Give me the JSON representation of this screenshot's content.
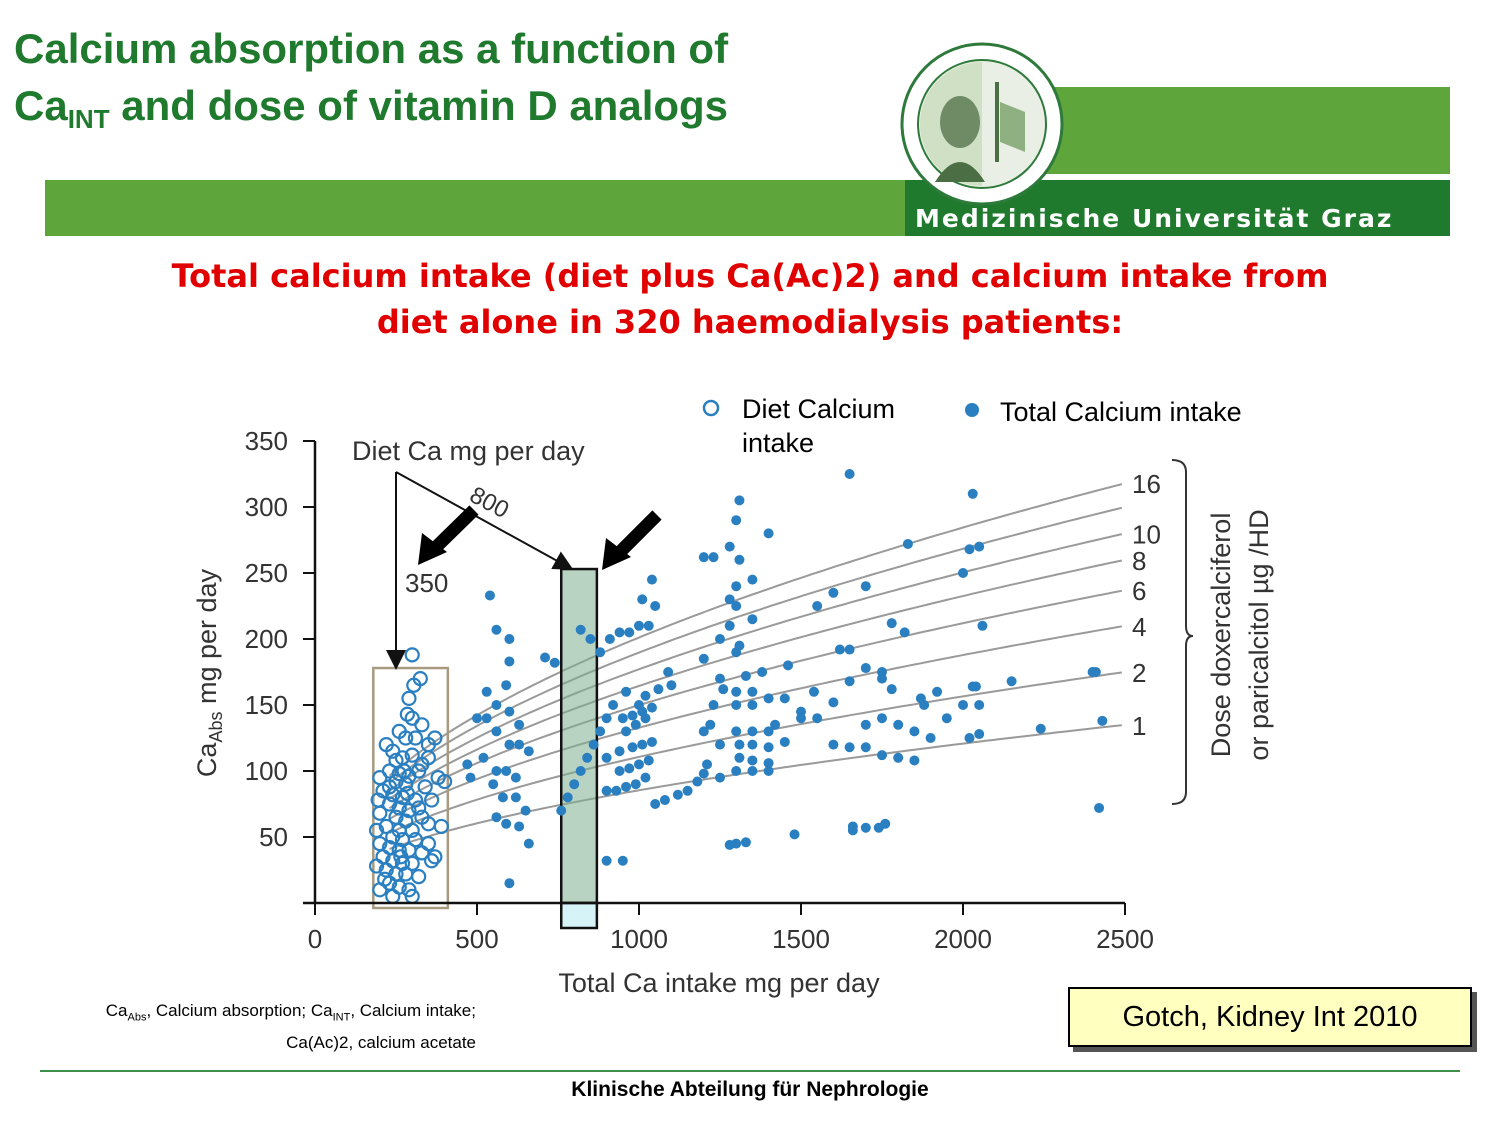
{
  "slide": {
    "title_line1": "Calcium absorption as a function of",
    "title_line2_prefix": "Ca",
    "title_line2_sub": "INT",
    "title_line2_rest": " and dose of vitamin D analogs",
    "university": "Medizinische Universität Graz",
    "subtitle_line1": "Total calcium intake (diet plus Ca(Ac)2) and calcium intake from",
    "subtitle_line2": "diet alone in 320 haemodialysis patients:",
    "footnote_l1_a": "Ca",
    "footnote_l1_a_sub": "Abs",
    "footnote_l1_b": ", Calcium absorption; Ca",
    "footnote_l1_b_sub": "INT",
    "footnote_l1_c": ", Calcium intake;",
    "footnote_l2": "Ca(Ac)2, calcium acetate",
    "citation": "Gotch, Kidney Int 2010",
    "footer": "Klinische Abteilung für Nephrologie",
    "colors": {
      "title_green": "#1f7a2e",
      "band_green": "#5ea63c",
      "subtitle_red": "#e00000",
      "point_blue": "#2a7fc1"
    }
  },
  "chart_data": {
    "type": "scatter",
    "xlabel": "Total Ca intake mg per day",
    "ylabel_prefix": "Ca",
    "ylabel_sub": "Abs",
    "ylabel_rest": " mg per day",
    "xlim": [
      0,
      2500
    ],
    "ylim": [
      0,
      350
    ],
    "xticks": [
      0,
      500,
      1000,
      1500,
      2000,
      2500
    ],
    "yticks": [
      50,
      100,
      150,
      200,
      250,
      300,
      350
    ],
    "legend": {
      "open_label_l1": "Diet Calcium",
      "open_label_l2": "intake",
      "filled_label": "Total Calcium intake"
    },
    "annotation_title": "Diet Ca mg per day",
    "annotation_350": "350",
    "annotation_800": "800",
    "dose_label_l1": "Dose doxercalciferol",
    "dose_label_l2": "or paricalcitol µg /HD",
    "curves": [
      {
        "label": "1",
        "y_end": 135
      },
      {
        "label": "2",
        "y_end": 175
      },
      {
        "label": "4",
        "y_end": 210
      },
      {
        "label": "6",
        "y_end": 237
      },
      {
        "label": "8",
        "y_end": 260
      },
      {
        "label": "10",
        "y_end": 280
      },
      {
        "label": "",
        "y_end": 300
      },
      {
        "label": "16",
        "y_end": 318
      }
    ],
    "highlight_diet_box": [
      180,
      410,
      0,
      178
    ],
    "highlight_800_column": [
      760,
      870,
      0,
      253
    ],
    "series": [
      {
        "name": "Diet Calcium intake",
        "marker": "open",
        "points": [
          [
            300,
            188
          ],
          [
            325,
            170
          ],
          [
            305,
            165
          ],
          [
            290,
            155
          ],
          [
            285,
            143
          ],
          [
            300,
            140
          ],
          [
            260,
            130
          ],
          [
            330,
            135
          ],
          [
            280,
            125
          ],
          [
            310,
            125
          ],
          [
            350,
            120
          ],
          [
            240,
            115
          ],
          [
            270,
            110
          ],
          [
            300,
            112
          ],
          [
            330,
            105
          ],
          [
            230,
            100
          ],
          [
            260,
            98
          ],
          [
            290,
            96
          ],
          [
            320,
            100
          ],
          [
            200,
            95
          ],
          [
            250,
            92
          ],
          [
            280,
            90
          ],
          [
            340,
            88
          ],
          [
            210,
            85
          ],
          [
            240,
            82
          ],
          [
            270,
            80
          ],
          [
            310,
            78
          ],
          [
            360,
            78
          ],
          [
            230,
            75
          ],
          [
            260,
            72
          ],
          [
            290,
            70
          ],
          [
            320,
            72
          ],
          [
            200,
            68
          ],
          [
            250,
            65
          ],
          [
            280,
            62
          ],
          [
            330,
            65
          ],
          [
            390,
            58
          ],
          [
            220,
            58
          ],
          [
            260,
            55
          ],
          [
            300,
            55
          ],
          [
            190,
            55
          ],
          [
            240,
            50
          ],
          [
            270,
            48
          ],
          [
            310,
            48
          ],
          [
            350,
            45
          ],
          [
            200,
            45
          ],
          [
            230,
            42
          ],
          [
            260,
            40
          ],
          [
            290,
            40
          ],
          [
            330,
            38
          ],
          [
            370,
            35
          ],
          [
            210,
            35
          ],
          [
            240,
            32
          ],
          [
            270,
            30
          ],
          [
            300,
            30
          ],
          [
            190,
            28
          ],
          [
            220,
            25
          ],
          [
            250,
            22
          ],
          [
            280,
            22
          ],
          [
            320,
            20
          ],
          [
            230,
            15
          ],
          [
            260,
            12
          ],
          [
            290,
            10
          ],
          [
            200,
            10
          ],
          [
            240,
            5
          ],
          [
            300,
            5
          ],
          [
            380,
            95
          ],
          [
            400,
            92
          ],
          [
            350,
            110
          ],
          [
            370,
            125
          ],
          [
            220,
            120
          ],
          [
            250,
            108
          ],
          [
            275,
            100
          ],
          [
            230,
            88
          ],
          [
            195,
            78
          ],
          [
            350,
            60
          ],
          [
            360,
            32
          ],
          [
            215,
            18
          ],
          [
            265,
            35
          ],
          [
            285,
            83
          ]
        ]
      },
      {
        "name": "Total Calcium intake",
        "marker": "filled",
        "points": [
          [
            540,
            233
          ],
          [
            560,
            207
          ],
          [
            600,
            200
          ],
          [
            600,
            183
          ],
          [
            590,
            165
          ],
          [
            530,
            160
          ],
          [
            560,
            150
          ],
          [
            600,
            145
          ],
          [
            630,
            135
          ],
          [
            500,
            140
          ],
          [
            530,
            140
          ],
          [
            560,
            130
          ],
          [
            600,
            120
          ],
          [
            630,
            120
          ],
          [
            660,
            115
          ],
          [
            520,
            110
          ],
          [
            560,
            100
          ],
          [
            590,
            100
          ],
          [
            620,
            95
          ],
          [
            550,
            90
          ],
          [
            580,
            80
          ],
          [
            620,
            80
          ],
          [
            650,
            70
          ],
          [
            560,
            65
          ],
          [
            590,
            60
          ],
          [
            630,
            58
          ],
          [
            660,
            45
          ],
          [
            600,
            15
          ],
          [
            470,
            105
          ],
          [
            480,
            95
          ],
          [
            710,
            186
          ],
          [
            740,
            182
          ],
          [
            820,
            207
          ],
          [
            850,
            200
          ],
          [
            880,
            190
          ],
          [
            910,
            200
          ],
          [
            940,
            205
          ],
          [
            970,
            205
          ],
          [
            1000,
            210
          ],
          [
            1030,
            210
          ],
          [
            1050,
            225
          ],
          [
            1010,
            230
          ],
          [
            1040,
            245
          ],
          [
            1090,
            175
          ],
          [
            1100,
            165
          ],
          [
            1060,
            162
          ],
          [
            1020,
            157
          ],
          [
            960,
            160
          ],
          [
            920,
            150
          ],
          [
            900,
            140
          ],
          [
            880,
            130
          ],
          [
            860,
            120
          ],
          [
            840,
            110
          ],
          [
            820,
            100
          ],
          [
            800,
            90
          ],
          [
            780,
            80
          ],
          [
            760,
            70
          ],
          [
            900,
            85
          ],
          [
            930,
            85
          ],
          [
            960,
            88
          ],
          [
            990,
            90
          ],
          [
            1020,
            95
          ],
          [
            940,
            100
          ],
          [
            970,
            102
          ],
          [
            1000,
            105
          ],
          [
            1030,
            108
          ],
          [
            900,
            110
          ],
          [
            940,
            115
          ],
          [
            980,
            118
          ],
          [
            1010,
            120
          ],
          [
            1040,
            122
          ],
          [
            950,
            140
          ],
          [
            980,
            142
          ],
          [
            1010,
            145
          ],
          [
            1040,
            148
          ],
          [
            1000,
            150
          ],
          [
            960,
            130
          ],
          [
            990,
            135
          ],
          [
            1020,
            140
          ],
          [
            950,
            32
          ],
          [
            900,
            32
          ],
          [
            1200,
            262
          ],
          [
            1230,
            262
          ],
          [
            1280,
            270
          ],
          [
            1310,
            260
          ],
          [
            1300,
            290
          ],
          [
            1310,
            305
          ],
          [
            1400,
            280
          ],
          [
            1300,
            240
          ],
          [
            1350,
            245
          ],
          [
            1280,
            230
          ],
          [
            1300,
            225
          ],
          [
            1250,
            200
          ],
          [
            1280,
            210
          ],
          [
            1350,
            215
          ],
          [
            1310,
            195
          ],
          [
            1300,
            190
          ],
          [
            1200,
            185
          ],
          [
            1250,
            170
          ],
          [
            1300,
            160
          ],
          [
            1350,
            160
          ],
          [
            1400,
            155
          ],
          [
            1300,
            150
          ],
          [
            1350,
            150
          ],
          [
            1200,
            130
          ],
          [
            1300,
            130
          ],
          [
            1350,
            130
          ],
          [
            1400,
            130
          ],
          [
            1310,
            120
          ],
          [
            1350,
            120
          ],
          [
            1400,
            118
          ],
          [
            1310,
            110
          ],
          [
            1350,
            108
          ],
          [
            1400,
            106
          ],
          [
            1200,
            98
          ],
          [
            1300,
            100
          ],
          [
            1350,
            100
          ],
          [
            1400,
            100
          ],
          [
            1250,
            95
          ],
          [
            1300,
            45
          ],
          [
            1280,
            44
          ],
          [
            1330,
            46
          ],
          [
            1480,
            52
          ],
          [
            1460,
            180
          ],
          [
            1450,
            122
          ],
          [
            1500,
            145
          ],
          [
            1550,
            140
          ],
          [
            1550,
            225
          ],
          [
            1600,
            235
          ],
          [
            1650,
            325
          ],
          [
            1700,
            240
          ],
          [
            1750,
            175
          ],
          [
            1780,
            212
          ],
          [
            1820,
            205
          ],
          [
            1830,
            272
          ],
          [
            1620,
            192
          ],
          [
            1650,
            168
          ],
          [
            1650,
            192
          ],
          [
            1700,
            178
          ],
          [
            1750,
            170
          ],
          [
            1600,
            120
          ],
          [
            1650,
            118
          ],
          [
            1700,
            118
          ],
          [
            1750,
            112
          ],
          [
            1800,
            110
          ],
          [
            1850,
            108
          ],
          [
            1660,
            55
          ],
          [
            1700,
            57
          ],
          [
            1740,
            57
          ],
          [
            1760,
            60
          ],
          [
            1660,
            58
          ],
          [
            1880,
            150
          ],
          [
            1920,
            160
          ],
          [
            1950,
            140
          ],
          [
            1700,
            135
          ],
          [
            1750,
            140
          ],
          [
            1800,
            135
          ],
          [
            1850,
            130
          ],
          [
            1900,
            125
          ],
          [
            2000,
            150
          ],
          [
            2050,
            150
          ],
          [
            2000,
            250
          ],
          [
            2020,
            268
          ],
          [
            2050,
            270
          ],
          [
            2060,
            210
          ],
          [
            2030,
            164
          ],
          [
            2040,
            164
          ],
          [
            2150,
            168
          ],
          [
            2240,
            132
          ],
          [
            2030,
            310
          ],
          [
            2020,
            125
          ],
          [
            2050,
            128
          ],
          [
            2400,
            175
          ],
          [
            2410,
            175
          ],
          [
            2430,
            138
          ],
          [
            2420,
            72
          ],
          [
            1780,
            162
          ],
          [
            1870,
            155
          ],
          [
            1600,
            152
          ],
          [
            1540,
            160
          ],
          [
            1500,
            140
          ],
          [
            1450,
            155
          ],
          [
            1420,
            135
          ],
          [
            1380,
            175
          ],
          [
            1330,
            172
          ],
          [
            1260,
            162
          ],
          [
            1230,
            150
          ],
          [
            1220,
            135
          ],
          [
            1250,
            120
          ],
          [
            1210,
            105
          ],
          [
            1180,
            92
          ],
          [
            1150,
            85
          ],
          [
            1120,
            82
          ],
          [
            1080,
            78
          ],
          [
            1050,
            75
          ]
        ]
      }
    ]
  }
}
